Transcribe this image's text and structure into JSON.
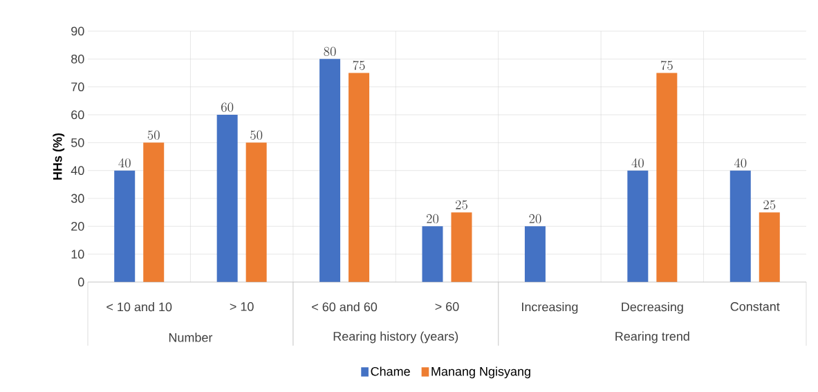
{
  "chart_data": {
    "type": "bar",
    "ylabel": "HHs (%)",
    "categories": [
      "< 10 and 10",
      "> 10",
      "< 60 and 60",
      "> 60",
      "Increasing",
      "Decreasing",
      "Constant"
    ],
    "series": [
      {
        "name": "Chame",
        "color": "#4472c4",
        "values": [
          40,
          60,
          80,
          20,
          20,
          40,
          40
        ]
      },
      {
        "name": "Manang Ngisyang",
        "color": "#ed7d31",
        "values": [
          50,
          50,
          75,
          25,
          null,
          75,
          25
        ]
      }
    ],
    "annotations": [
      "Number",
      "Rearing history (years)",
      "Rearing trend"
    ],
    "ylim": [
      0,
      90
    ],
    "yticks": [
      0,
      10,
      20,
      30,
      40,
      50,
      60,
      70,
      80,
      90
    ],
    "grid": true,
    "legend": "bottom",
    "data_labels": true
  }
}
